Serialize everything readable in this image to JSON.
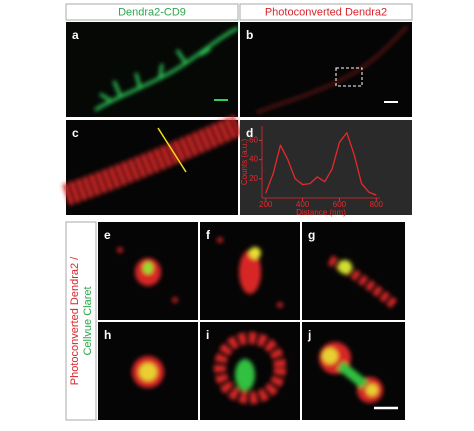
{
  "figure": {
    "headers": [
      "Dendra2-CD9",
      "Photoconverted Dendra2"
    ],
    "panel_labels": [
      "a",
      "b",
      "c",
      "d",
      "e",
      "f",
      "g",
      "h",
      "i",
      "j"
    ],
    "side_label": [
      "Photoconverted Dendra2 /",
      "Cellvue Claret"
    ]
  },
  "chart_data": {
    "type": "line",
    "x_label": "Distance (nm)",
    "y_label": "Counts (a.u.)",
    "x": [
      200,
      240,
      280,
      320,
      360,
      400,
      440,
      480,
      520,
      560,
      600,
      640,
      680,
      720,
      760,
      800
    ],
    "series": [
      {
        "color": "#e8282a",
        "values": [
          5,
          25,
          55,
          40,
          20,
          14,
          15,
          22,
          17,
          30,
          58,
          68,
          45,
          15,
          6,
          3
        ]
      }
    ],
    "xlim": [
      180,
      820
    ],
    "ylim": [
      0,
      75
    ],
    "xticks": [
      200,
      400,
      600,
      800
    ],
    "yticks": [
      20,
      40,
      60
    ]
  }
}
